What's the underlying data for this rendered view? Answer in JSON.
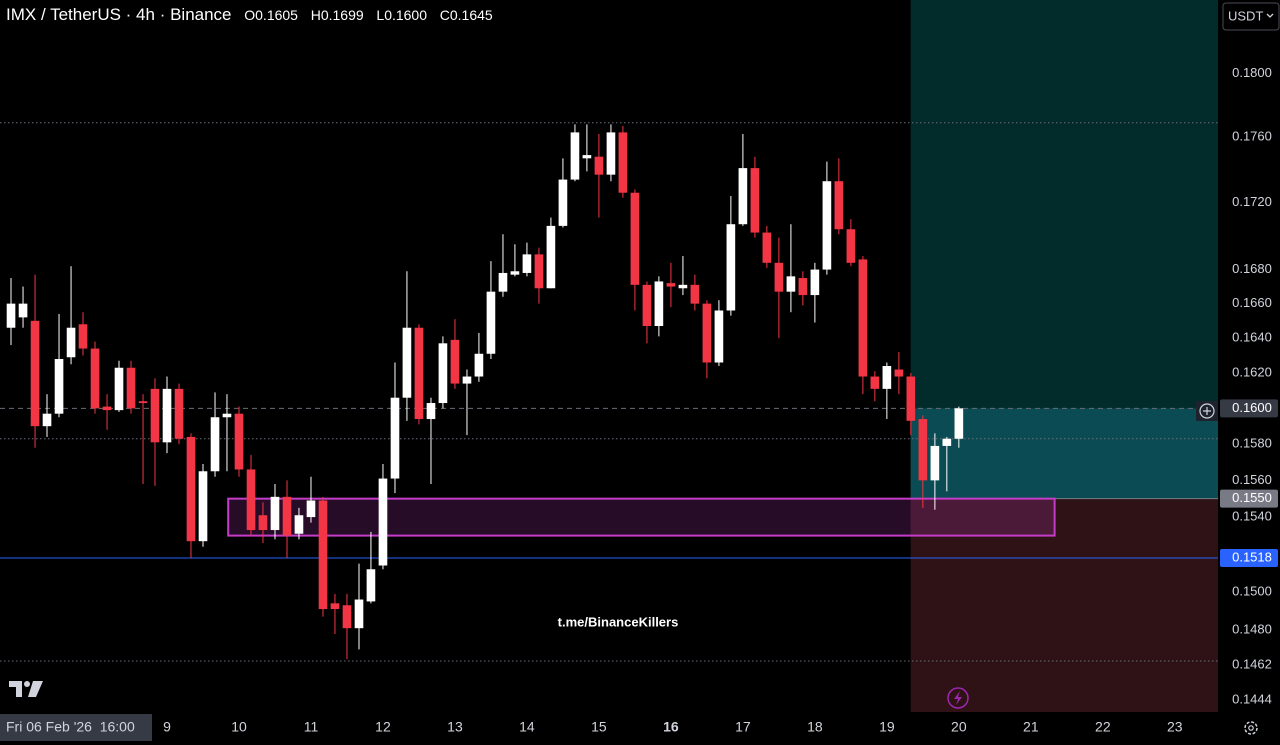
{
  "chart_data": {
    "type": "candlestick",
    "title": "IMX / TetherUS · 4h · Binance",
    "ohlc_header": [
      {
        "key": "O",
        "value": "0.1605"
      },
      {
        "key": "H",
        "value": "0.1699"
      },
      {
        "key": "L",
        "value": "0.1600"
      },
      {
        "key": "C",
        "value": "0.1645"
      }
    ],
    "currency_button": "USDT",
    "watermark": "t.me/BinanceKillers",
    "crosshair_label": "Fri 06 Feb '26  16:00",
    "log_scale": true,
    "up_color": "#ffffff",
    "down_color": "#f23645",
    "x": [
      6.833,
      7,
      7.167,
      7.333,
      7.5,
      7.667,
      7.833,
      8,
      8.167,
      8.333,
      8.5,
      8.667,
      8.833,
      9,
      9.167,
      9.333,
      9.5,
      9.667,
      9.833,
      10,
      10.167,
      10.333,
      10.5,
      10.667,
      10.833,
      11,
      11.167,
      11.333,
      11.5,
      11.667,
      11.833,
      12,
      12.167,
      12.333,
      12.5,
      12.667,
      12.833,
      13,
      13.167,
      13.333,
      13.5,
      13.667,
      13.833,
      14,
      14.167,
      14.333,
      14.5,
      14.667,
      14.833,
      15,
      15.167,
      15.333,
      15.5,
      15.667,
      15.833,
      16,
      16.167,
      16.333,
      16.5,
      16.667,
      16.833,
      17,
      17.167,
      17.333,
      17.5,
      17.667,
      17.833,
      18,
      18.167,
      18.333,
      18.5,
      18.667,
      18.833,
      19,
      19.167,
      19.333,
      19.5,
      19.667,
      19.833,
      20
    ],
    "open": [
      0.1646,
      0.1652,
      0.165,
      0.159,
      0.1597,
      0.1629,
      0.1648,
      0.1634,
      0.1601,
      0.1599,
      0.1623,
      0.1604,
      0.1611,
      0.1581,
      0.1611,
      0.1584,
      0.1527,
      0.1565,
      0.1595,
      0.1597,
      0.1566,
      0.1541,
      0.1533,
      0.1551,
      0.1531,
      0.154,
      0.1549,
      0.1494,
      0.1493,
      0.1481,
      0.1495,
      0.1514,
      0.1561,
      0.1606,
      0.1646,
      0.1594,
      0.1603,
      0.1639,
      0.1614,
      0.1618,
      0.1631,
      0.1667,
      0.1677,
      0.1678,
      0.1689,
      0.1669,
      0.1706,
      0.1734,
      0.1747,
      0.1748,
      0.1737,
      0.1763,
      0.1726,
      0.1671,
      0.1647,
      0.1672,
      0.1669,
      0.1671,
      0.166,
      0.1626,
      0.1656,
      0.1707,
      0.1741,
      0.1702,
      0.1684,
      0.1667,
      0.1675,
      0.1665,
      0.168,
      0.1733,
      0.1704,
      0.1686,
      0.1618,
      0.1611,
      0.1622,
      0.1618,
      0.1594,
      0.156,
      0.1579,
      0.1583
    ],
    "high": [
      0.1675,
      0.167,
      0.1677,
      0.1608,
      0.1654,
      0.1682,
      0.1655,
      0.1638,
      0.1608,
      0.1627,
      0.1627,
      0.1608,
      0.1617,
      0.1618,
      0.1614,
      0.1586,
      0.1569,
      0.1609,
      0.1608,
      0.1601,
      0.1574,
      0.1548,
      0.1558,
      0.156,
      0.1545,
      0.1562,
      0.1551,
      0.1499,
      0.1499,
      0.1515,
      0.1532,
      0.1569,
      0.1626,
      0.1679,
      0.1648,
      0.1606,
      0.1641,
      0.1651,
      0.1622,
      0.1643,
      0.1685,
      0.1701,
      0.1695,
      0.1696,
      0.1693,
      0.1711,
      0.1747,
      0.1768,
      0.1768,
      0.1762,
      0.1768,
      0.1767,
      0.1728,
      0.1673,
      0.1676,
      0.1684,
      0.1688,
      0.1677,
      0.1662,
      0.1662,
      0.1724,
      0.1762,
      0.1748,
      0.1706,
      0.1699,
      0.1707,
      0.1679,
      0.1684,
      0.1745,
      0.1747,
      0.171,
      0.1688,
      0.1621,
      0.1626,
      0.1632,
      0.162,
      0.1596,
      0.1586,
      0.1584,
      0.1601
    ],
    "low": [
      0.1636,
      0.1646,
      0.1578,
      0.1584,
      0.1595,
      0.1625,
      0.163,
      0.1597,
      0.1588,
      0.1598,
      0.1597,
      0.1558,
      0.1557,
      0.1575,
      0.158,
      0.1518,
      0.1524,
      0.1562,
      0.1565,
      0.1562,
      0.153,
      0.1526,
      0.1528,
      0.1518,
      0.1528,
      0.1537,
      0.1487,
      0.1478,
      0.1465,
      0.147,
      0.1494,
      0.1512,
      0.1553,
      0.1593,
      0.1591,
      0.1558,
      0.16,
      0.1611,
      0.1585,
      0.1615,
      0.1628,
      0.1664,
      0.1676,
      0.1676,
      0.166,
      0.1669,
      0.1705,
      0.1733,
      0.1739,
      0.1711,
      0.1733,
      0.1723,
      0.1656,
      0.1637,
      0.1641,
      0.1658,
      0.1665,
      0.1656,
      0.1617,
      0.1624,
      0.1653,
      0.1706,
      0.1699,
      0.1681,
      0.164,
      0.1655,
      0.1659,
      0.1649,
      0.1677,
      0.1701,
      0.1682,
      0.1608,
      0.1604,
      0.1594,
      0.1608,
      0.1585,
      0.1545,
      0.1544,
      0.1554,
      0.1578
    ],
    "close": [
      0.166,
      0.166,
      0.159,
      0.1597,
      0.1628,
      0.1646,
      0.1634,
      0.16,
      0.1599,
      0.1623,
      0.16,
      0.1603,
      0.1581,
      0.1611,
      0.1583,
      0.1527,
      0.1565,
      0.1595,
      0.1597,
      0.1566,
      0.1533,
      0.1533,
      0.1551,
      0.153,
      0.1541,
      0.1549,
      0.1491,
      0.1491,
      0.1481,
      0.1496,
      0.1512,
      0.1561,
      0.1606,
      0.1646,
      0.1594,
      0.1603,
      0.1637,
      0.1614,
      0.1618,
      0.1631,
      0.1667,
      0.1678,
      0.1679,
      0.1689,
      0.1669,
      0.1706,
      0.1734,
      0.1763,
      0.1749,
      0.1737,
      0.1763,
      0.1726,
      0.1671,
      0.1647,
      0.1673,
      0.167,
      0.1671,
      0.166,
      0.1626,
      0.1656,
      0.1707,
      0.1741,
      0.1702,
      0.1684,
      0.1667,
      0.1676,
      0.1665,
      0.168,
      0.1733,
      0.1704,
      0.1684,
      0.1618,
      0.1611,
      0.1624,
      0.1618,
      0.1593,
      0.156,
      0.1579,
      0.1583,
      0.16
    ],
    "xlim": [
      6.68,
      23.6
    ],
    "ylim": [
      0.1438,
      0.1847
    ],
    "yticks": [
      {
        "value": 0.1444,
        "label": "0.1444"
      },
      {
        "value": 0.1462,
        "label": "0.1462"
      },
      {
        "value": 0.148,
        "label": "0.1480"
      },
      {
        "value": 0.15,
        "label": "0.1500"
      },
      {
        "value": 0.154,
        "label": "0.1540"
      },
      {
        "value": 0.156,
        "label": "0.1560"
      },
      {
        "value": 0.158,
        "label": "0.1580"
      },
      {
        "value": 0.162,
        "label": "0.1620"
      },
      {
        "value": 0.164,
        "label": "0.1640"
      },
      {
        "value": 0.166,
        "label": "0.1660"
      },
      {
        "value": 0.168,
        "label": "0.1680"
      },
      {
        "value": 0.172,
        "label": "0.1720"
      },
      {
        "value": 0.176,
        "label": "0.1760"
      },
      {
        "value": 0.18,
        "label": "0.1800"
      }
    ],
    "xticks": [
      9,
      10,
      11,
      12,
      13,
      14,
      15,
      16,
      17,
      18,
      19,
      20,
      21,
      22,
      23
    ],
    "emphasized_xtick": 16,
    "price_labels": [
      {
        "value": 0.16,
        "label": "0.1600",
        "color": "#363a45"
      },
      {
        "value": 0.155,
        "label": "0.1550",
        "color": "#787b86"
      },
      {
        "value": 0.1518,
        "label": "0.1518",
        "color": "#2962ff"
      }
    ],
    "hlines": [
      {
        "value": 0.1769,
        "style": "dotted",
        "color": "#6a6d78"
      },
      {
        "value": 0.1583,
        "style": "dotted",
        "color": "#6a6d78"
      },
      {
        "value": 0.1464,
        "style": "dotted",
        "color": "#6a6d78"
      },
      {
        "value": 0.16,
        "style": "dashed",
        "color": "#6a6d78"
      },
      {
        "value": 0.1518,
        "style": "solid",
        "color": "#2962ff"
      }
    ],
    "position": {
      "start": 19.33,
      "end": 23.6,
      "entry": 0.155,
      "current": 0.16,
      "target": 0.1847,
      "stop": 0.1438,
      "target_color": "#022b2b",
      "current_color": "#0b4b53",
      "stop_color": "#2f1216"
    },
    "zone": {
      "start": 9.85,
      "end": 21.33,
      "high": 0.155,
      "low": 0.153,
      "color": "#c43cc7"
    }
  }
}
